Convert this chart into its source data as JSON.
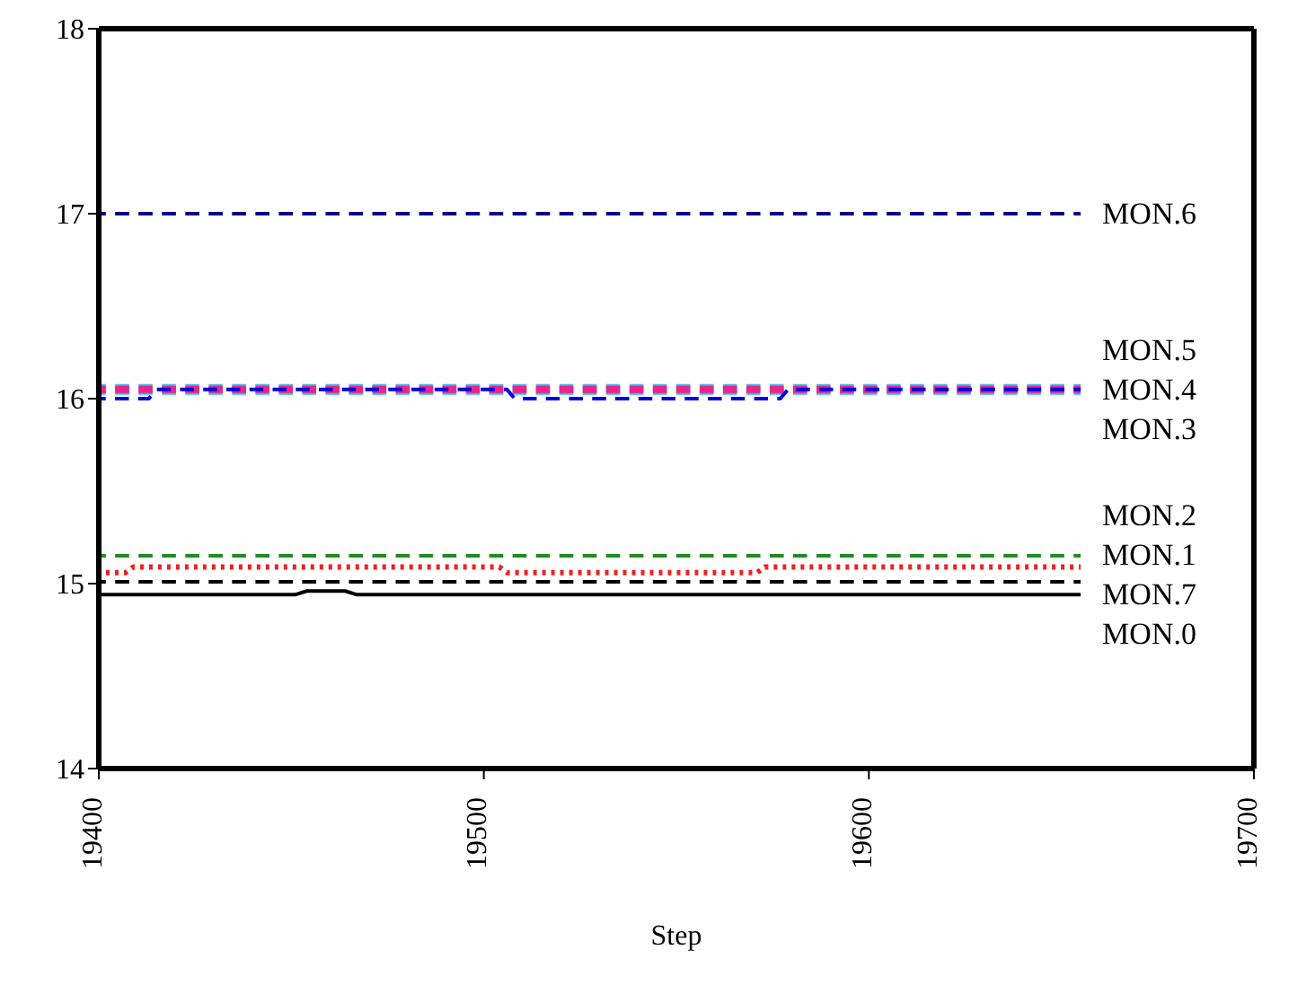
{
  "chart_data": {
    "type": "line",
    "xlabel": "Step",
    "xlim": [
      19400,
      19700
    ],
    "xticks": [
      19400,
      19500,
      19600,
      19700
    ],
    "ylim": [
      14,
      18
    ],
    "yticks": [
      14,
      15,
      16,
      17,
      18
    ],
    "marker": "none",
    "series": [
      {
        "name": "MON.6",
        "color": "#00008b",
        "line_style": "dashed",
        "x": [
          19400,
          19655
        ],
        "values": [
          17.0,
          17.0
        ]
      },
      {
        "name": "MON.5",
        "color": "#33bbee",
        "line_style": "dashed",
        "x": [
          19400,
          19655
        ],
        "values": [
          16.05,
          16.05
        ]
      },
      {
        "name": "MON.4",
        "color": "#ee2288",
        "line_style": "dashed",
        "x": [
          19400,
          19655
        ],
        "values": [
          16.05,
          16.05
        ]
      },
      {
        "name": "MON.3",
        "color": "#0000dd",
        "line_style": "dashed",
        "x": [
          19400,
          19413,
          19415,
          19506,
          19508,
          19577,
          19579,
          19655
        ],
        "values": [
          16.0,
          16.0,
          16.05,
          16.05,
          16.0,
          16.0,
          16.05,
          16.05
        ]
      },
      {
        "name": "MON.2",
        "color": "#228b22",
        "line_style": "dashed",
        "x": [
          19400,
          19655
        ],
        "values": [
          15.15,
          15.15
        ]
      },
      {
        "name": "MON.1",
        "color": "#ee2222",
        "line_style": "dotted",
        "x": [
          19400,
          19407,
          19409,
          19504,
          19506,
          19571,
          19573,
          19655
        ],
        "values": [
          15.06,
          15.06,
          15.09,
          15.09,
          15.06,
          15.06,
          15.09,
          15.09
        ]
      },
      {
        "name": "MON.7",
        "color": "#000000",
        "line_style": "dashed",
        "x": [
          19400,
          19655
        ],
        "values": [
          15.01,
          15.01
        ]
      },
      {
        "name": "MON.0",
        "color": "#000000",
        "line_style": "solid",
        "x": [
          19400,
          19451,
          19454,
          19464,
          19467,
          19655
        ],
        "values": [
          14.94,
          14.94,
          14.96,
          14.96,
          14.94,
          14.94
        ]
      }
    ]
  }
}
